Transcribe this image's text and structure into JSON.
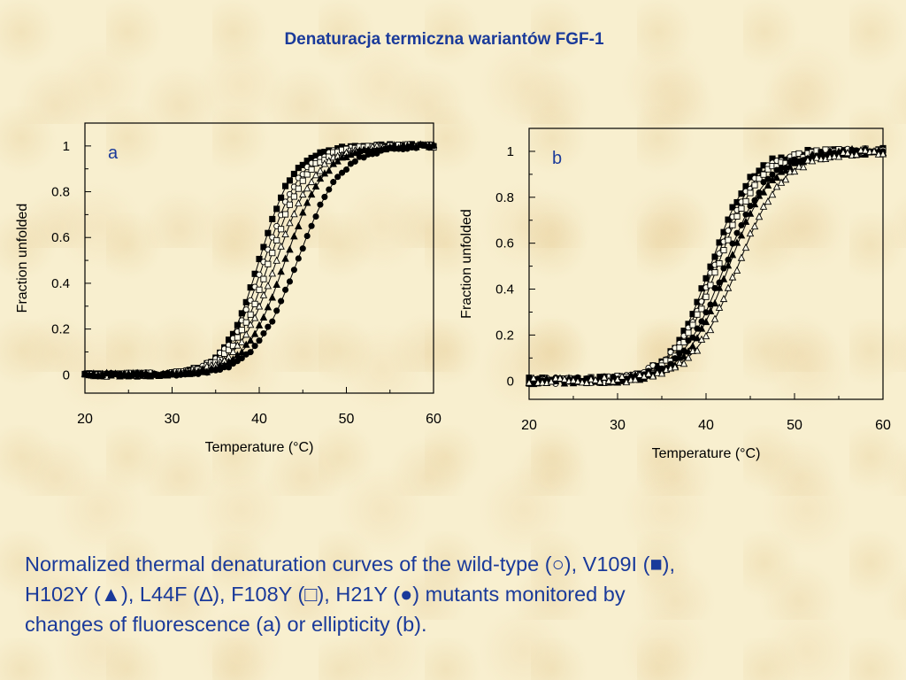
{
  "page": {
    "title": "Denaturacja termiczna wariantów FGF-1",
    "caption_lines": [
      "Normalized thermal denaturation curves of the wild-type (○), V109I (■),",
      "H102Y (▲), L44F (∆), F108Y (□), H21Y (●) mutants monitored by",
      "changes of fluorescence (a) or ellipticity (b)."
    ],
    "colors": {
      "text_blue": "#1a3a9a",
      "ink": "#000000",
      "background": "#f8efcf"
    }
  },
  "chart_data": [
    {
      "type": "scatter",
      "panel_label": "a",
      "title": "",
      "xlabel": "Temperature (°C)",
      "ylabel": "Fraction unfolded",
      "xlim": [
        20,
        60
      ],
      "ylim": [
        -0.08,
        1.1
      ],
      "xticks": [
        "20",
        "30",
        "40",
        "50",
        "60"
      ],
      "yticks": [
        "0",
        "0.2",
        "0.4",
        "0.6",
        "0.8",
        "1"
      ],
      "grid": false,
      "legend": "none",
      "series": [
        {
          "marker": "filled-square",
          "midpoint_c": 40.0,
          "width": 2.0
        },
        {
          "marker": "open-circle",
          "midpoint_c": 40.6,
          "width": 2.2
        },
        {
          "marker": "open-square",
          "midpoint_c": 41.2,
          "width": 2.2
        },
        {
          "marker": "open-triangle",
          "midpoint_c": 42.0,
          "width": 2.3
        },
        {
          "marker": "filled-triangle",
          "midpoint_c": 43.0,
          "width": 2.3
        },
        {
          "marker": "filled-circle",
          "midpoint_c": 44.4,
          "width": 2.5
        }
      ]
    },
    {
      "type": "scatter",
      "panel_label": "b",
      "title": "",
      "xlabel": "Temperature (°C)",
      "ylabel": "Fraction unfolded",
      "xlim": [
        20,
        60
      ],
      "ylim": [
        -0.08,
        1.1
      ],
      "xticks": [
        "20",
        "30",
        "40",
        "50",
        "60"
      ],
      "yticks": [
        "0",
        "0.2",
        "0.4",
        "0.6",
        "0.8",
        "1"
      ],
      "grid": false,
      "legend": "none",
      "series": [
        {
          "marker": "filled-square",
          "midpoint_c": 40.5,
          "width": 2.3
        },
        {
          "marker": "open-circle",
          "midpoint_c": 40.9,
          "width": 2.4
        },
        {
          "marker": "open-square",
          "midpoint_c": 41.3,
          "width": 2.4
        },
        {
          "marker": "filled-circle",
          "midpoint_c": 42.1,
          "width": 2.5
        },
        {
          "marker": "filled-triangle",
          "midpoint_c": 42.6,
          "width": 2.5
        },
        {
          "marker": "open-triangle",
          "midpoint_c": 43.6,
          "width": 2.6
        }
      ]
    }
  ]
}
